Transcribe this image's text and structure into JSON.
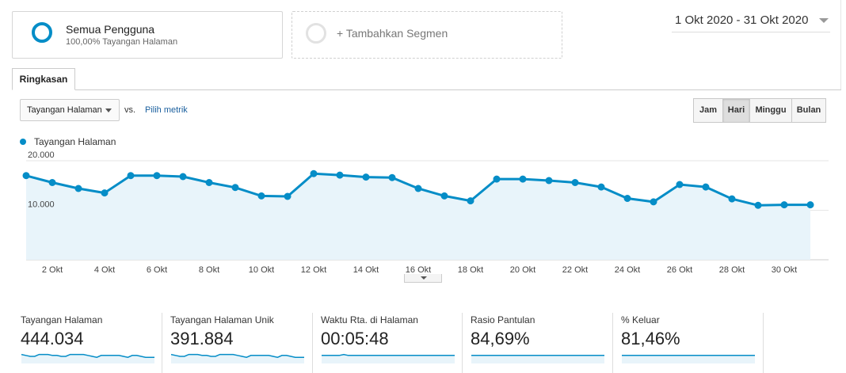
{
  "segments": {
    "primary": {
      "title": "Semua Pengguna",
      "subtitle": "100,00% Tayangan Halaman"
    },
    "add": {
      "label": "+ Tambahkan Segmen"
    }
  },
  "date_range": "1 Okt 2020 - 31 Okt 2020",
  "tabs": [
    "Ringkasan"
  ],
  "metric_selector": {
    "selected": "Tayangan Halaman",
    "vs_label": "vs.",
    "pick_metric": "Pilih metrik"
  },
  "granularity": {
    "options": [
      "Jam",
      "Hari",
      "Minggu",
      "Bulan"
    ],
    "selected": "Hari"
  },
  "colors": {
    "accent": "#058dc7",
    "fill": "#e8f4fa",
    "grid": "#e6e6e6"
  },
  "chart_data": {
    "type": "area",
    "series": [
      {
        "name": "Tayangan Halaman",
        "values": [
          17000,
          15600,
          14400,
          13500,
          17000,
          17000,
          16800,
          15600,
          14600,
          12900,
          12800,
          17400,
          17100,
          16700,
          16600,
          14400,
          12900,
          11900,
          16300,
          16300,
          16000,
          15600,
          14700,
          12400,
          11700,
          15200,
          14700,
          12300,
          11000,
          11100,
          11100
        ]
      }
    ],
    "x": [
      1,
      2,
      3,
      4,
      5,
      6,
      7,
      8,
      9,
      10,
      11,
      12,
      13,
      14,
      15,
      16,
      17,
      18,
      19,
      20,
      21,
      22,
      23,
      24,
      25,
      26,
      27,
      28,
      29,
      30,
      31
    ],
    "x_tick_labels": [
      "2 Okt",
      "4 Okt",
      "6 Okt",
      "8 Okt",
      "10 Okt",
      "12 Okt",
      "14 Okt",
      "16 Okt",
      "18 Okt",
      "20 Okt",
      "22 Okt",
      "24 Okt",
      "26 Okt",
      "28 Okt",
      "30 Okt"
    ],
    "x_tick_days": [
      2,
      4,
      6,
      8,
      10,
      12,
      14,
      16,
      18,
      20,
      22,
      24,
      26,
      28,
      30
    ],
    "y_tick_labels": [
      "20.000",
      "10.000"
    ],
    "y_ticks": [
      20000,
      10000
    ],
    "ylim": [
      0,
      20000
    ],
    "legend_position": "top-left"
  },
  "kpis": [
    {
      "label": "Tayangan Halaman",
      "value": "444.034",
      "trend": [
        7,
        6,
        5,
        5,
        7,
        7,
        7,
        6,
        6,
        5,
        5,
        7,
        7,
        7,
        7,
        6,
        5,
        4,
        6,
        6,
        6,
        6,
        6,
        5,
        4,
        6,
        6,
        5,
        4,
        4,
        4
      ]
    },
    {
      "label": "Tayangan Halaman Unik",
      "value": "391.884",
      "trend": [
        7,
        6,
        5,
        5,
        7,
        7,
        7,
        6,
        6,
        5,
        5,
        7,
        7,
        7,
        7,
        6,
        5,
        4,
        6,
        6,
        6,
        6,
        6,
        5,
        4,
        6,
        6,
        5,
        4,
        4,
        4
      ]
    },
    {
      "label": "Waktu Rta. di Halaman",
      "value": "00:05:48",
      "trend": [
        6,
        6,
        6,
        6,
        6,
        7,
        6,
        6,
        6,
        6,
        6,
        6,
        6,
        6,
        6,
        6,
        6,
        6,
        6,
        6,
        6,
        6,
        6,
        6,
        6,
        6,
        6,
        6,
        6,
        6,
        6
      ]
    },
    {
      "label": "Rasio Pantulan",
      "value": "84,69%",
      "trend": [
        6,
        6,
        6,
        6,
        6,
        6,
        6,
        6,
        6,
        6,
        6,
        6,
        6,
        6,
        6,
        6,
        6,
        6,
        6,
        6,
        6,
        6,
        6,
        6,
        6,
        6,
        6,
        6,
        6,
        6,
        6
      ]
    },
    {
      "label": "% Keluar",
      "value": "81,46%",
      "trend": [
        6,
        6,
        6,
        6,
        6,
        6,
        6,
        6,
        6,
        6,
        6,
        6,
        6,
        6,
        6,
        6,
        6,
        6,
        6,
        6,
        6,
        6,
        6,
        6,
        6,
        6,
        6,
        6,
        6,
        6,
        6
      ]
    }
  ]
}
